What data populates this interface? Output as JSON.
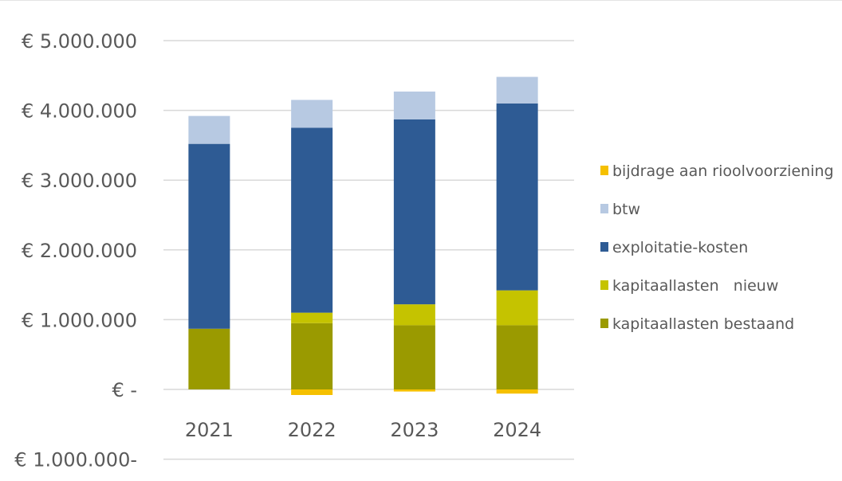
{
  "chart_data": {
    "type": "bar",
    "stacked": true,
    "currency_symbol": "€",
    "categories": [
      "2021",
      "2022",
      "2023",
      "2024"
    ],
    "y_tick_labels": [
      "€ 5.000.000",
      "€ 4.000.000",
      "€ 3.000.000",
      "€ 2.000.000",
      "€ 1.000.000",
      "€ -",
      "€ 1.000.000-"
    ],
    "y_tick_values": [
      5000000,
      4000000,
      3000000,
      2000000,
      1000000,
      0,
      -1000000
    ],
    "ylim": [
      -1000000,
      5000000
    ],
    "grid": true,
    "legend_position": "right",
    "series": [
      {
        "name": "kapitaallasten bestaand",
        "color": "#9a9a00",
        "values": [
          870000,
          950000,
          920000,
          920000
        ]
      },
      {
        "name": "kapitaallasten   nieuw",
        "color": "#c5c300",
        "values": [
          0,
          150000,
          300000,
          500000
        ]
      },
      {
        "name": "exploitatie-kosten",
        "color": "#2e5b94",
        "values": [
          2650000,
          2650000,
          2650000,
          2680000
        ]
      },
      {
        "name": "btw",
        "color": "#b7c9e2",
        "values": [
          400000,
          400000,
          400000,
          380000
        ]
      },
      {
        "name": "bijdrage aan rioolvoorziening",
        "color": "#f5c000",
        "values": [
          0,
          -80000,
          -30000,
          -60000
        ]
      }
    ],
    "legend": [
      {
        "name": "bijdrage aan rioolvoorziening",
        "color": "#f5c000"
      },
      {
        "name": "btw",
        "color": "#b7c9e2"
      },
      {
        "name": "exploitatie-kosten",
        "color": "#2e5b94"
      },
      {
        "name": "kapitaallasten   nieuw",
        "color": "#c5c300"
      },
      {
        "name": "kapitaallasten bestaand",
        "color": "#9a9a00"
      }
    ]
  }
}
